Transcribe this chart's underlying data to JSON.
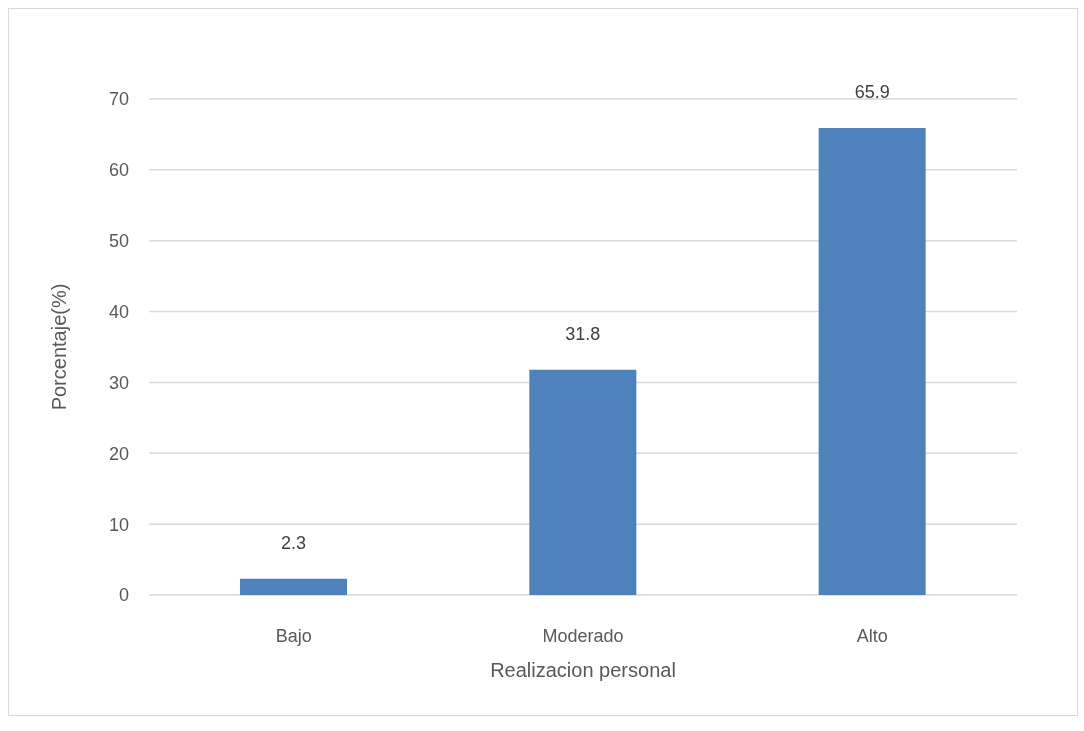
{
  "chart_data": {
    "type": "bar",
    "xlabel": "Realizacion personal",
    "ylabel": "Porcentaje(%)",
    "categories": [
      "Bajo",
      "Moderado",
      "Alto"
    ],
    "values": [
      2.3,
      31.8,
      65.9
    ],
    "color": "#4f81bd",
    "ylim": [
      0,
      70
    ],
    "yticks": [
      0,
      10,
      20,
      30,
      40,
      50,
      60,
      70
    ],
    "grid": "y",
    "data_labels": true
  }
}
